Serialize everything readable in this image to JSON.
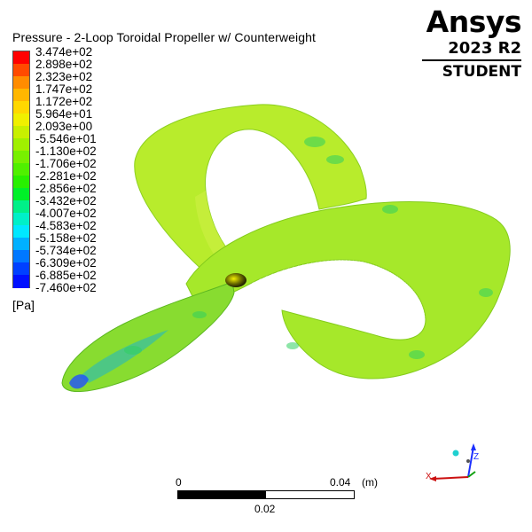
{
  "title": "Pressure - 2-Loop Toroidal Propeller w/ Counterweight",
  "legend": {
    "labels": [
      "3.474e+02",
      "2.898e+02",
      "2.323e+02",
      "1.747e+02",
      "1.172e+02",
      "5.964e+01",
      "2.093e+00",
      "-5.546e+01",
      "-1.130e+02",
      "-1.706e+02",
      "-2.281e+02",
      "-2.856e+02",
      "-3.432e+02",
      "-4.007e+02",
      "-4.583e+02",
      "-5.158e+02",
      "-5.734e+02",
      "-6.309e+02",
      "-6.885e+02",
      "-7.460e+02"
    ],
    "colors": [
      "#ff0000",
      "#ff4a00",
      "#ff8c00",
      "#ffb700",
      "#ffd800",
      "#f0f000",
      "#c8f000",
      "#a0f000",
      "#78f000",
      "#50f000",
      "#28f000",
      "#00f028",
      "#00f088",
      "#00f0c8",
      "#00e8ff",
      "#00b0ff",
      "#0078ff",
      "#0040ff",
      "#0010ff"
    ],
    "unit": "[Pa]"
  },
  "brand": {
    "name": "Ansys",
    "version": "2023 R2",
    "edition": "STUDENT"
  },
  "scale": {
    "left": "0",
    "right": "0.04",
    "unit": "(m)",
    "middle": "0.02"
  },
  "triad": {
    "x": "X",
    "z": "Z"
  }
}
